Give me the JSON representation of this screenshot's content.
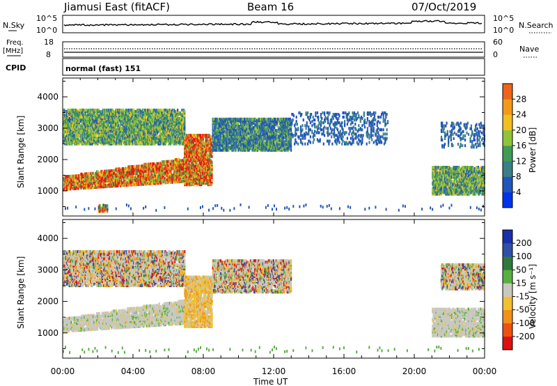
{
  "header": {
    "title": "Jiamusi East (fitACF)",
    "beam": "Beam 16",
    "date": "07/Oct/2019"
  },
  "top_panels": {
    "nsky_label": "N.Sky",
    "nsky_hi": "10^5",
    "nsky_lo": "10^0",
    "nsearch_label": "N.Search",
    "nsearch_hi": "10^5",
    "nsearch_lo": "10^0",
    "freq_label": "Freq.",
    "freq_unit": "[MHz]",
    "freq_hi": "18",
    "freq_lo": "8",
    "nave_label": "Nave",
    "nave_hi": "60",
    "nave_lo": "0",
    "cpid_label": "CPID",
    "cpid_value": "normal (fast) 151"
  },
  "chart_data": [
    {
      "type": "heatmap",
      "name": "power",
      "ylabel": "Slant Range [km]",
      "xlabel": "",
      "yticks": [
        1000,
        2000,
        3000,
        4000
      ],
      "ylim": [
        200,
        4600
      ],
      "xlim": [
        0,
        24
      ],
      "colorbar": {
        "label": "Power [dB]",
        "ticks": [
          "4",
          "8",
          "12",
          "16",
          "20",
          "24",
          "28"
        ],
        "colors": [
          "#0033ee",
          "#2255bb",
          "#3a7f8a",
          "#3f9b55",
          "#8fc43a",
          "#f0c020",
          "#f29a18",
          "#ee6418",
          "#e01a10"
        ]
      },
      "regions": [
        {
          "t0": 0.0,
          "t1": 6.9,
          "r0": 1050,
          "r1": 1700,
          "level": "high"
        },
        {
          "t0": 0.0,
          "t1": 6.9,
          "r0": 2500,
          "r1": 3600,
          "level": "mid"
        },
        {
          "t0": 6.9,
          "t1": 8.5,
          "r0": 1200,
          "r1": 2800,
          "level": "high"
        },
        {
          "t0": 8.5,
          "t1": 13.0,
          "r0": 2300,
          "r1": 3300,
          "level": "low"
        },
        {
          "t0": 13.0,
          "t1": 18.5,
          "r0": 2500,
          "r1": 3500,
          "level": "sparse"
        },
        {
          "t0": 21.0,
          "t1": 24.0,
          "r0": 900,
          "r1": 1800,
          "level": "mid"
        },
        {
          "t0": 21.5,
          "t1": 24.0,
          "r0": 2400,
          "r1": 3200,
          "level": "sparse"
        },
        {
          "t0": 2.0,
          "t1": 2.5,
          "r0": 350,
          "r1": 550,
          "level": "high"
        }
      ]
    },
    {
      "type": "heatmap",
      "name": "velocity",
      "ylabel": "Slant Range [km]",
      "xlabel": "Time UT",
      "yticks": [
        1000,
        2000,
        3000,
        4000
      ],
      "ylim": [
        200,
        4600
      ],
      "xlim": [
        0,
        24
      ],
      "xticks": [
        "00:00",
        "04:00",
        "08:00",
        "12:00",
        "16:00",
        "20:00",
        "00:00"
      ],
      "colorbar": {
        "label": "Velocity [m s⁻¹]",
        "ticks": [
          "200",
          "100",
          "50",
          "15",
          "-15",
          "-50",
          "-100",
          "-200"
        ],
        "colors": [
          "#1a2faa",
          "#3050a8",
          "#2f7a3a",
          "#55b040",
          "#c8c8c0",
          "#f0c030",
          "#f29018",
          "#ee5010",
          "#dd1010"
        ]
      },
      "regions": [
        {
          "t0": 0.0,
          "t1": 6.9,
          "r0": 1050,
          "r1": 1700,
          "level": "gray"
        },
        {
          "t0": 0.0,
          "t1": 6.9,
          "r0": 2500,
          "r1": 3600,
          "level": "mixed"
        },
        {
          "t0": 6.9,
          "t1": 8.5,
          "r0": 1200,
          "r1": 2800,
          "level": "neg"
        },
        {
          "t0": 8.5,
          "t1": 13.0,
          "r0": 2300,
          "r1": 3300,
          "level": "mixed"
        },
        {
          "t0": 21.0,
          "t1": 24.0,
          "r0": 900,
          "r1": 1800,
          "level": "gray"
        },
        {
          "t0": 21.5,
          "t1": 24.0,
          "r0": 2400,
          "r1": 3200,
          "level": "mixed"
        }
      ]
    }
  ]
}
